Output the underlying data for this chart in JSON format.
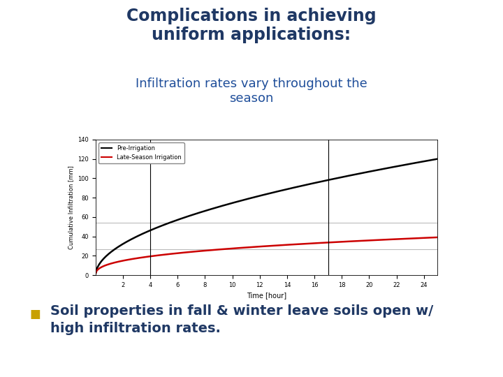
{
  "title_line1": "Complications in achieving",
  "title_line2": "uniform applications:",
  "subtitle": "Infiltration rates vary throughout the\nseason",
  "title_color": "#1F3864",
  "title_fontsize": 17,
  "subtitle_fontsize": 13,
  "subtitle_color": "#1F4E9A",
  "xlabel": "Time [hour]",
  "ylabel": "Cumulative Infiltration [mm]",
  "xlim": [
    0,
    25
  ],
  "ylim": [
    0,
    140
  ],
  "xticks": [
    2,
    4,
    6,
    8,
    10,
    12,
    14,
    16,
    18,
    20,
    22,
    24
  ],
  "yticks": [
    0,
    20,
    40,
    60,
    80,
    100,
    120,
    140
  ],
  "pre_irrigation_color": "#000000",
  "late_season_color": "#CC0000",
  "legend_labels": [
    "Pre-Irrigation",
    "Late-Season Irrigation"
  ],
  "hline_y": 54,
  "hline_color": "#BBBBBB",
  "hline2_y": 27,
  "vline1_x": 4,
  "vline2_x": 17,
  "vline_color": "#000000",
  "bullet_color": "#C8A000",
  "bullet_text_line1": "Soil properties in fall & winter leave soils open w/",
  "bullet_text_line2": "high infiltration rates.",
  "bullet_fontsize": 14,
  "bg_color": "#FFFFFF",
  "chart_bg": "#FFFFFF",
  "pre_k": 22.5,
  "pre_alpha": 0.52,
  "late_k": 11.5,
  "late_alpha": 0.38
}
